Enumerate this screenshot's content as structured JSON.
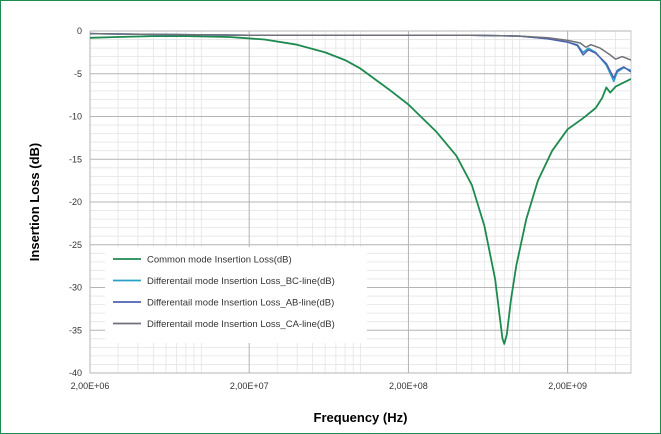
{
  "chart_data": {
    "type": "line",
    "title": "",
    "xlabel": "Frequency (Hz)",
    "ylabel": "Insertion Loss (dB)",
    "x_scale": "log",
    "xlim": [
      2000000,
      5000000000
    ],
    "ylim": [
      -40,
      0
    ],
    "x_ticks": [
      {
        "value": 2000000,
        "label": "2,00E+06"
      },
      {
        "value": 20000000,
        "label": "2,00E+07"
      },
      {
        "value": 200000000,
        "label": "2,00E+08"
      },
      {
        "value": 2000000000,
        "label": "2,00E+09"
      }
    ],
    "y_ticks": [
      {
        "value": 0,
        "label": "0"
      },
      {
        "value": -5,
        "label": "-5"
      },
      {
        "value": -10,
        "label": "-10"
      },
      {
        "value": -15,
        "label": "-15"
      },
      {
        "value": -20,
        "label": "-20"
      },
      {
        "value": -25,
        "label": "-25"
      },
      {
        "value": -30,
        "label": "-30"
      },
      {
        "value": -35,
        "label": "-35"
      },
      {
        "value": -40,
        "label": "-40"
      }
    ],
    "grid": true,
    "legend_position": "bottom-left",
    "series": [
      {
        "name": "Common mode Insertion Loss(dB)",
        "color": "#1d8a4f",
        "points": [
          [
            2000000,
            -0.8
          ],
          [
            3000000,
            -0.7
          ],
          [
            5000000,
            -0.6
          ],
          [
            8000000,
            -0.6
          ],
          [
            15000000,
            -0.7
          ],
          [
            25000000,
            -1.0
          ],
          [
            40000000,
            -1.6
          ],
          [
            60000000,
            -2.5
          ],
          [
            80000000,
            -3.4
          ],
          [
            100000000,
            -4.4
          ],
          [
            150000000,
            -6.8
          ],
          [
            200000000,
            -8.6
          ],
          [
            300000000,
            -11.8
          ],
          [
            400000000,
            -14.6
          ],
          [
            500000000,
            -18.0
          ],
          [
            600000000,
            -22.8
          ],
          [
            700000000,
            -29.0
          ],
          [
            750000000,
            -33.5
          ],
          [
            780000000,
            -36.0
          ],
          [
            800000000,
            -36.6
          ],
          [
            830000000,
            -35.5
          ],
          [
            880000000,
            -31.5
          ],
          [
            950000000,
            -27.5
          ],
          [
            1100000000,
            -22.0
          ],
          [
            1300000000,
            -17.5
          ],
          [
            1600000000,
            -14.0
          ],
          [
            2000000000,
            -11.5
          ],
          [
            2500000000,
            -10.2
          ],
          [
            3000000000,
            -9.0
          ],
          [
            3300000000,
            -7.8
          ],
          [
            3500000000,
            -6.6
          ],
          [
            3700000000,
            -7.2
          ],
          [
            4000000000,
            -6.5
          ],
          [
            5000000000,
            -5.6
          ]
        ]
      },
      {
        "name": "Differentail mode Insertion Loss_BC-line(dB)",
        "color": "#2aa0c8",
        "points": [
          [
            2000000,
            -0.3
          ],
          [
            5000000,
            -0.4
          ],
          [
            20000000,
            -0.5
          ],
          [
            100000000,
            -0.5
          ],
          [
            500000000,
            -0.5
          ],
          [
            1000000000,
            -0.6
          ],
          [
            1500000000,
            -0.9
          ],
          [
            2000000000,
            -1.3
          ],
          [
            2300000000,
            -1.6
          ],
          [
            2500000000,
            -2.5
          ],
          [
            2700000000,
            -2.0
          ],
          [
            3000000000,
            -2.5
          ],
          [
            3500000000,
            -4.0
          ],
          [
            3900000000,
            -5.9
          ],
          [
            4100000000,
            -4.8
          ],
          [
            4500000000,
            -4.3
          ],
          [
            5000000000,
            -4.6
          ]
        ]
      },
      {
        "name": "Differentail mode Insertion Loss_AB-line(dB)",
        "color": "#5060b0",
        "points": [
          [
            2000000,
            -0.3
          ],
          [
            5000000,
            -0.4
          ],
          [
            20000000,
            -0.5
          ],
          [
            100000000,
            -0.5
          ],
          [
            500000000,
            -0.5
          ],
          [
            1000000000,
            -0.6
          ],
          [
            1500000000,
            -0.9
          ],
          [
            2000000000,
            -1.3
          ],
          [
            2300000000,
            -1.7
          ],
          [
            2500000000,
            -2.8
          ],
          [
            2700000000,
            -2.2
          ],
          [
            3000000000,
            -2.6
          ],
          [
            3500000000,
            -3.8
          ],
          [
            3900000000,
            -5.5
          ],
          [
            4100000000,
            -4.6
          ],
          [
            4500000000,
            -4.2
          ],
          [
            5000000000,
            -4.8
          ]
        ]
      },
      {
        "name": "Differentail mode Insertion Loss_CA-line(dB)",
        "color": "#707078",
        "points": [
          [
            2000000,
            -0.3
          ],
          [
            5000000,
            -0.4
          ],
          [
            20000000,
            -0.5
          ],
          [
            100000000,
            -0.5
          ],
          [
            500000000,
            -0.5
          ],
          [
            1000000000,
            -0.6
          ],
          [
            1500000000,
            -0.8
          ],
          [
            2000000000,
            -1.1
          ],
          [
            2400000000,
            -1.4
          ],
          [
            2600000000,
            -1.9
          ],
          [
            2800000000,
            -1.6
          ],
          [
            3200000000,
            -2.0
          ],
          [
            3700000000,
            -2.8
          ],
          [
            4000000000,
            -3.3
          ],
          [
            4400000000,
            -3.0
          ],
          [
            5000000000,
            -3.4
          ]
        ]
      }
    ]
  }
}
